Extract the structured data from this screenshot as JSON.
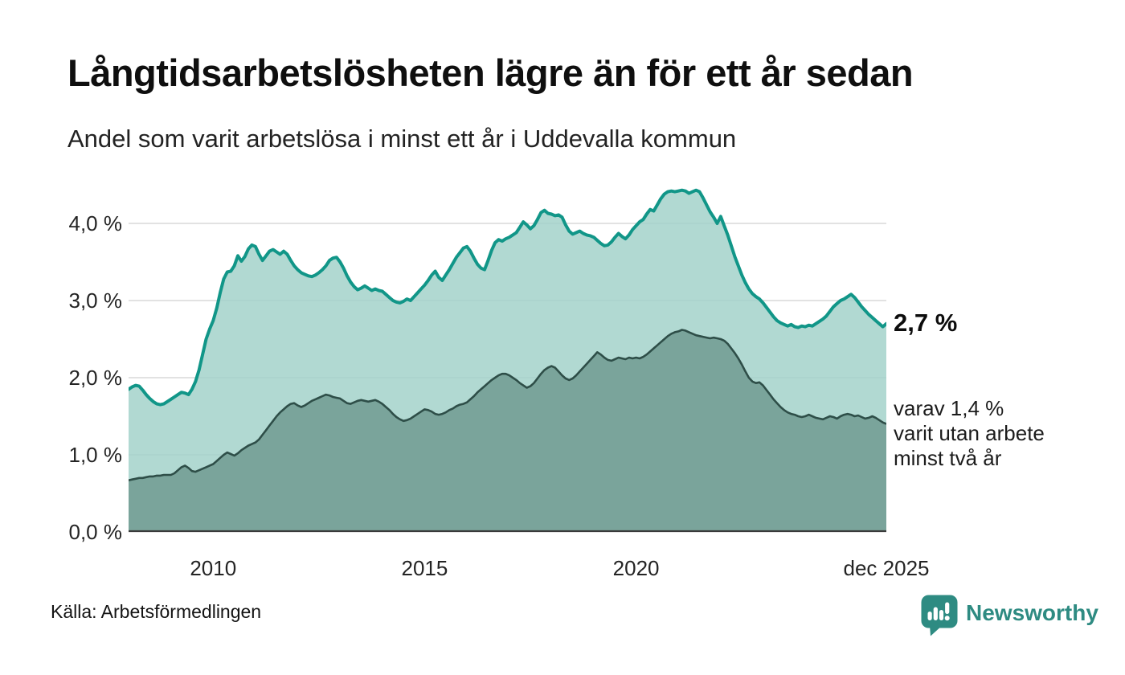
{
  "chart_data": {
    "type": "area",
    "title": "Långtidsarbetslösheten lägre än för ett år sedan",
    "subtitle": "Andel som varit arbetslösa i minst ett år i Uddevalla kommun",
    "unit": "%",
    "frequency": "monthly",
    "x_start": "2008-01",
    "x_end": "2025-12",
    "grid": true,
    "legend_position": "end-of-line",
    "x_axis": {
      "ticks": [
        {
          "label": "2010",
          "t": 2010.0
        },
        {
          "label": "2015",
          "t": 2015.0
        },
        {
          "label": "2020",
          "t": 2020.0
        },
        {
          "label": "dec 2025",
          "t": 2025.9167
        }
      ]
    },
    "y_axis": {
      "range": [
        0,
        4.58
      ],
      "ticks": [
        {
          "label": "0,0 %",
          "value": 0
        },
        {
          "label": "1,0 %",
          "value": 1
        },
        {
          "label": "2,0 %",
          "value": 2
        },
        {
          "label": "3,0 %",
          "value": 3
        },
        {
          "label": "4,0 %",
          "value": 4
        }
      ]
    },
    "colors": {
      "gridline": "#d8d8d8",
      "axis": "#3a3a3a",
      "accent": "#119688"
    },
    "annotations": {
      "latest_total": "2,7 %",
      "latest_two_year_lines": [
        "varav 1,4 %",
        "varit utan arbete",
        "minst två år"
      ]
    },
    "series": [
      {
        "name": "Andel arbetslösa minst ett år",
        "line": "#119688",
        "fill": "#a3d2ca",
        "end_value": "2,7 %",
        "values": [
          1.85,
          1.88,
          1.9,
          1.89,
          1.84,
          1.78,
          1.73,
          1.69,
          1.66,
          1.65,
          1.66,
          1.69,
          1.72,
          1.75,
          1.78,
          1.81,
          1.8,
          1.78,
          1.85,
          1.95,
          2.1,
          2.3,
          2.5,
          2.63,
          2.74,
          2.9,
          3.1,
          3.28,
          3.37,
          3.38,
          3.45,
          3.58,
          3.51,
          3.57,
          3.67,
          3.72,
          3.7,
          3.6,
          3.52,
          3.58,
          3.64,
          3.66,
          3.63,
          3.6,
          3.64,
          3.6,
          3.52,
          3.45,
          3.4,
          3.36,
          3.34,
          3.32,
          3.31,
          3.33,
          3.36,
          3.4,
          3.45,
          3.52,
          3.55,
          3.56,
          3.5,
          3.42,
          3.32,
          3.24,
          3.18,
          3.14,
          3.16,
          3.19,
          3.16,
          3.13,
          3.15,
          3.13,
          3.12,
          3.08,
          3.04,
          3.0,
          2.98,
          2.97,
          2.99,
          3.02,
          3.0,
          3.05,
          3.1,
          3.15,
          3.2,
          3.26,
          3.33,
          3.38,
          3.3,
          3.26,
          3.33,
          3.4,
          3.48,
          3.56,
          3.62,
          3.68,
          3.7,
          3.64,
          3.55,
          3.47,
          3.42,
          3.4,
          3.52,
          3.65,
          3.75,
          3.79,
          3.77,
          3.8,
          3.82,
          3.85,
          3.88,
          3.95,
          4.02,
          3.98,
          3.93,
          3.97,
          4.05,
          4.14,
          4.17,
          4.13,
          4.12,
          4.1,
          4.11,
          4.08,
          3.98,
          3.9,
          3.86,
          3.88,
          3.9,
          3.87,
          3.85,
          3.84,
          3.82,
          3.78,
          3.74,
          3.71,
          3.72,
          3.76,
          3.82,
          3.87,
          3.83,
          3.8,
          3.85,
          3.92,
          3.97,
          4.02,
          4.05,
          4.12,
          4.18,
          4.16,
          4.24,
          4.32,
          4.38,
          4.41,
          4.42,
          4.41,
          4.42,
          4.43,
          4.42,
          4.39,
          4.41,
          4.43,
          4.41,
          4.33,
          4.24,
          4.15,
          4.08,
          4.0,
          4.09,
          3.97,
          3.85,
          3.71,
          3.57,
          3.45,
          3.33,
          3.23,
          3.15,
          3.09,
          3.05,
          3.02,
          2.97,
          2.91,
          2.85,
          2.79,
          2.74,
          2.71,
          2.69,
          2.67,
          2.69,
          2.66,
          2.65,
          2.67,
          2.66,
          2.68,
          2.67,
          2.7,
          2.73,
          2.76,
          2.8,
          2.86,
          2.92,
          2.96,
          3.0,
          3.02,
          3.05,
          3.08,
          3.04,
          2.98,
          2.92,
          2.87,
          2.82,
          2.78,
          2.74,
          2.7,
          2.66,
          2.7
        ]
      },
      {
        "name": "varav arbetslösa minst två år",
        "line": "#2e4e48",
        "fill": "#7aa49b",
        "end_value": "1,4 %",
        "values": [
          0.67,
          0.68,
          0.69,
          0.7,
          0.7,
          0.71,
          0.72,
          0.72,
          0.73,
          0.73,
          0.74,
          0.74,
          0.74,
          0.76,
          0.8,
          0.84,
          0.86,
          0.83,
          0.79,
          0.78,
          0.8,
          0.82,
          0.84,
          0.86,
          0.88,
          0.92,
          0.96,
          1.0,
          1.03,
          1.01,
          0.99,
          1.02,
          1.06,
          1.09,
          1.12,
          1.14,
          1.16,
          1.2,
          1.26,
          1.32,
          1.38,
          1.44,
          1.5,
          1.55,
          1.59,
          1.63,
          1.66,
          1.67,
          1.64,
          1.62,
          1.64,
          1.67,
          1.7,
          1.72,
          1.74,
          1.76,
          1.78,
          1.77,
          1.75,
          1.74,
          1.73,
          1.7,
          1.67,
          1.66,
          1.68,
          1.7,
          1.71,
          1.7,
          1.69,
          1.7,
          1.71,
          1.69,
          1.66,
          1.62,
          1.58,
          1.53,
          1.49,
          1.46,
          1.44,
          1.45,
          1.47,
          1.5,
          1.53,
          1.56,
          1.59,
          1.58,
          1.56,
          1.53,
          1.52,
          1.53,
          1.55,
          1.58,
          1.6,
          1.63,
          1.65,
          1.66,
          1.68,
          1.72,
          1.76,
          1.81,
          1.85,
          1.89,
          1.93,
          1.97,
          2.0,
          2.03,
          2.05,
          2.05,
          2.03,
          2.0,
          1.97,
          1.93,
          1.9,
          1.87,
          1.89,
          1.93,
          1.99,
          2.05,
          2.1,
          2.13,
          2.15,
          2.13,
          2.08,
          2.03,
          1.99,
          1.97,
          1.99,
          2.03,
          2.08,
          2.13,
          2.18,
          2.23,
          2.28,
          2.33,
          2.3,
          2.26,
          2.23,
          2.22,
          2.24,
          2.26,
          2.25,
          2.24,
          2.26,
          2.25,
          2.26,
          2.25,
          2.27,
          2.3,
          2.34,
          2.38,
          2.42,
          2.46,
          2.5,
          2.54,
          2.57,
          2.59,
          2.6,
          2.62,
          2.61,
          2.59,
          2.57,
          2.55,
          2.54,
          2.53,
          2.52,
          2.51,
          2.52,
          2.51,
          2.5,
          2.48,
          2.44,
          2.38,
          2.32,
          2.25,
          2.17,
          2.08,
          2.0,
          1.95,
          1.93,
          1.94,
          1.9,
          1.84,
          1.78,
          1.72,
          1.67,
          1.62,
          1.58,
          1.55,
          1.53,
          1.52,
          1.5,
          1.49,
          1.5,
          1.52,
          1.5,
          1.48,
          1.47,
          1.46,
          1.48,
          1.5,
          1.49,
          1.47,
          1.5,
          1.52,
          1.53,
          1.52,
          1.5,
          1.51,
          1.49,
          1.47,
          1.48,
          1.5,
          1.48,
          1.45,
          1.42,
          1.4
        ]
      }
    ]
  },
  "footer": {
    "source": "Källa: Arbetsförmedlingen",
    "brand": "Newsworthy"
  }
}
